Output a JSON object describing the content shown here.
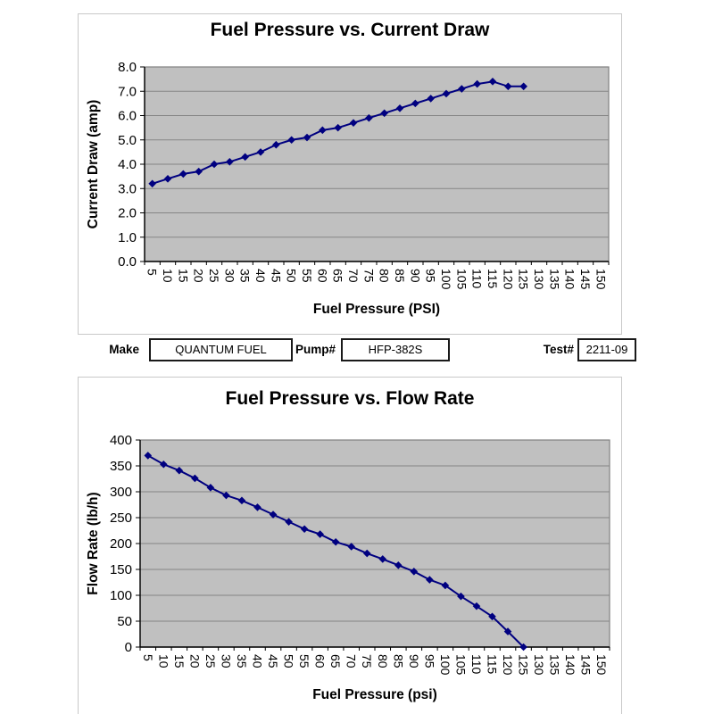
{
  "form": {
    "make_label": "Make",
    "make_value": "QUANTUM FUEL SYSTEMS",
    "pump_label": "Pump#",
    "pump_value": "HFP-382S",
    "test_label": "Test#",
    "test_value": "2211-09"
  },
  "colors": {
    "series": "#000080",
    "plot_bg": "#c0c0c0",
    "plot_border": "#808080",
    "gridline": "#858585",
    "axis": "#000000",
    "chart_border": "#c8c8c8"
  },
  "chart_data": [
    {
      "type": "line",
      "title": "Fuel Pressure vs. Current Draw",
      "xlabel": "Fuel Pressure (PSI)",
      "ylabel": "Current Draw (amp)",
      "legend": "none",
      "grid": "horizontal",
      "x_ticks": [
        "5",
        "10",
        "15",
        "20",
        "25",
        "30",
        "35",
        "40",
        "45",
        "50",
        "55",
        "60",
        "65",
        "70",
        "75",
        "80",
        "85",
        "90",
        "95",
        "100",
        "105",
        "110",
        "115",
        "120",
        "125",
        "130",
        "135",
        "140",
        "145",
        "150"
      ],
      "y_ticks": [
        "8.0",
        "7.0",
        "6.0",
        "5.0",
        "4.0",
        "3.0",
        "2.0",
        "1.0",
        "0.0"
      ],
      "ylim": [
        0,
        8
      ],
      "x": [
        5,
        10,
        15,
        20,
        25,
        30,
        35,
        40,
        45,
        50,
        55,
        60,
        65,
        70,
        75,
        80,
        85,
        90,
        95,
        100,
        105,
        110,
        115,
        120,
        125
      ],
      "values": [
        3.2,
        3.4,
        3.6,
        3.7,
        4.0,
        4.1,
        4.3,
        4.5,
        4.8,
        5.0,
        5.1,
        5.4,
        5.5,
        5.7,
        5.9,
        6.1,
        6.3,
        6.5,
        6.7,
        6.9,
        7.1,
        7.3,
        7.4,
        7.2,
        7.2
      ]
    },
    {
      "type": "line",
      "title": "Fuel Pressure vs. Flow Rate",
      "xlabel": "Fuel Pressure (psi)",
      "ylabel": "Flow Rate (lb/h)",
      "legend": "none",
      "grid": "horizontal",
      "x_ticks": [
        "5",
        "10",
        "15",
        "20",
        "25",
        "30",
        "35",
        "40",
        "45",
        "50",
        "55",
        "60",
        "65",
        "70",
        "75",
        "80",
        "85",
        "90",
        "95",
        "100",
        "105",
        "110",
        "115",
        "120",
        "125",
        "130",
        "135",
        "140",
        "145",
        "150"
      ],
      "y_ticks": [
        "400",
        "350",
        "300",
        "250",
        "200",
        "150",
        "100",
        "50",
        "0"
      ],
      "ylim": [
        0,
        400
      ],
      "x": [
        5,
        10,
        15,
        20,
        25,
        30,
        35,
        40,
        45,
        50,
        55,
        60,
        65,
        70,
        75,
        80,
        85,
        90,
        95,
        100,
        105,
        110,
        115,
        120,
        125
      ],
      "values": [
        370,
        353,
        341,
        326,
        308,
        293,
        283,
        270,
        256,
        242,
        228,
        218,
        203,
        194,
        181,
        170,
        158,
        146,
        130,
        119,
        98,
        79,
        59,
        30,
        0
      ]
    }
  ]
}
